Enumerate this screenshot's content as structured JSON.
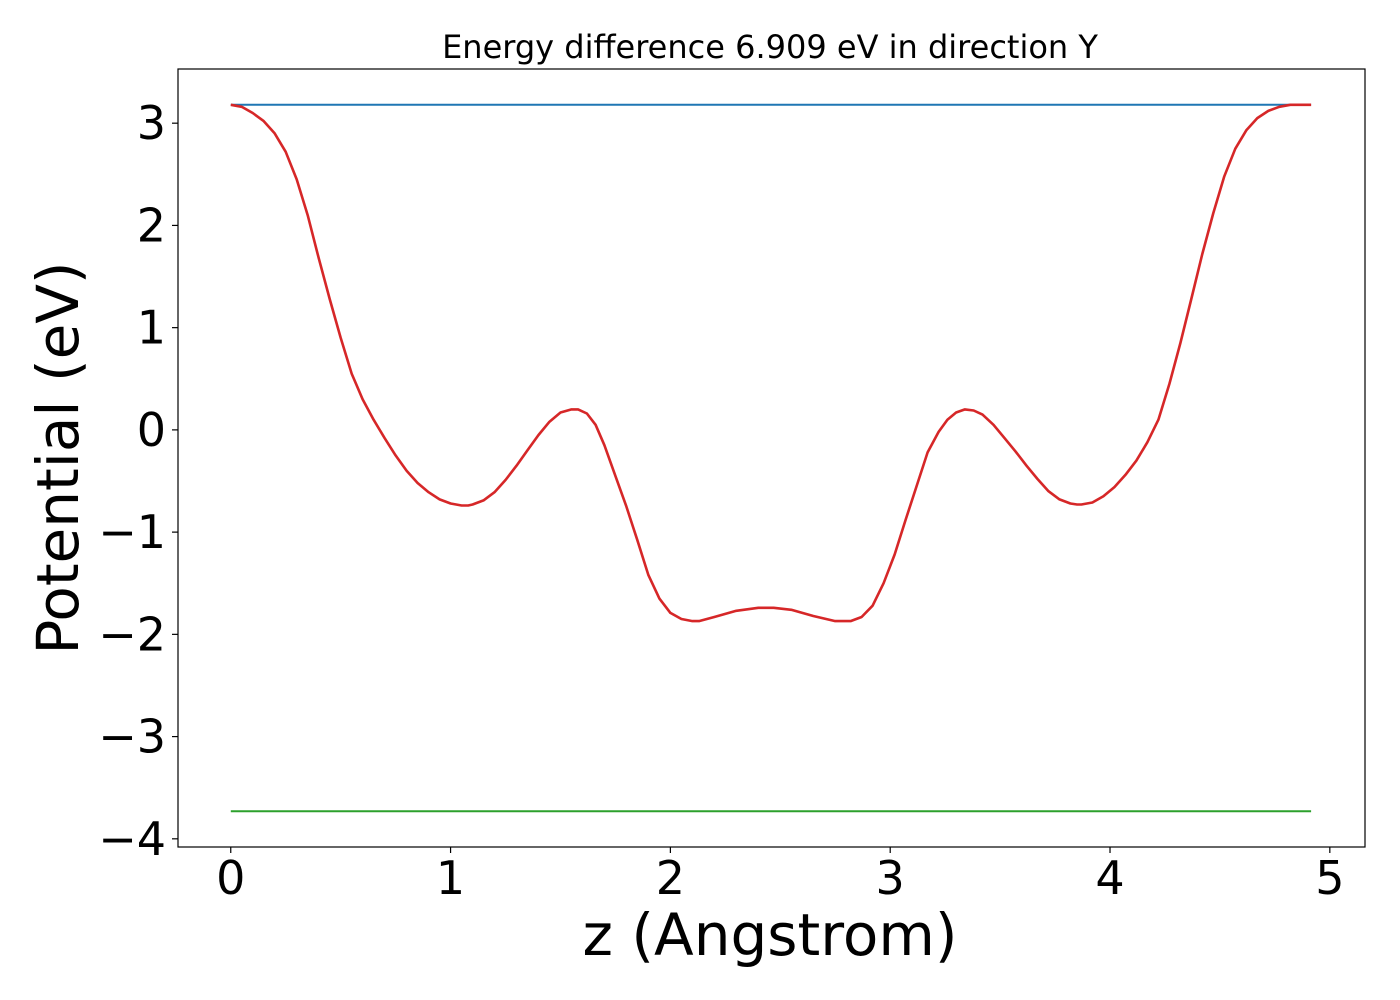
{
  "chart_data": {
    "type": "line",
    "title": "Energy difference 6.909 eV in direction Y",
    "xlabel": "z (Angstrom)",
    "ylabel": "Potential (eV)",
    "xlim": [
      -0.24,
      5.16
    ],
    "ylim": [
      -4.08,
      3.53
    ],
    "xticks": [
      0,
      1,
      2,
      3,
      4,
      5
    ],
    "xtick_labels": [
      "0",
      "1",
      "2",
      "3",
      "4",
      "5"
    ],
    "yticks": [
      3,
      2,
      1,
      0,
      -1,
      -2,
      -3,
      -4
    ],
    "ytick_labels": [
      "3",
      "2",
      "1",
      "0",
      "−1",
      "−2",
      "−3",
      "−4"
    ],
    "grid": false,
    "series": [
      {
        "color": "#1f77b4",
        "x": [
          0,
          4.915
        ],
        "y": [
          3.18,
          3.18
        ]
      },
      {
        "color": "#2ca02c",
        "x": [
          0,
          4.915
        ],
        "y": [
          -3.73,
          -3.73
        ]
      },
      {
        "color": "#d62728",
        "x": [
          0.0,
          0.05,
          0.1,
          0.15,
          0.2,
          0.25,
          0.3,
          0.35,
          0.4,
          0.45,
          0.5,
          0.55,
          0.6,
          0.65,
          0.7,
          0.75,
          0.8,
          0.85,
          0.9,
          0.95,
          1.0,
          1.05,
          1.08,
          1.1,
          1.15,
          1.2,
          1.25,
          1.3,
          1.35,
          1.4,
          1.45,
          1.5,
          1.55,
          1.58,
          1.62,
          1.66,
          1.7,
          1.75,
          1.8,
          1.85,
          1.9,
          1.95,
          2.0,
          2.05,
          2.1,
          2.13,
          2.2,
          2.3,
          2.4,
          2.47,
          2.55,
          2.65,
          2.75,
          2.82,
          2.87,
          2.92,
          2.97,
          3.02,
          3.07,
          3.12,
          3.17,
          3.22,
          3.26,
          3.3,
          3.34,
          3.38,
          3.42,
          3.47,
          3.52,
          3.57,
          3.62,
          3.67,
          3.72,
          3.77,
          3.82,
          3.85,
          3.87,
          3.92,
          3.97,
          4.02,
          4.07,
          4.12,
          4.17,
          4.22,
          4.27,
          4.32,
          4.37,
          4.42,
          4.47,
          4.52,
          4.57,
          4.62,
          4.67,
          4.72,
          4.77,
          4.82,
          4.87,
          4.915
        ],
        "y": [
          3.18,
          3.16,
          3.1,
          3.02,
          2.9,
          2.72,
          2.45,
          2.1,
          1.68,
          1.28,
          0.9,
          0.55,
          0.3,
          0.1,
          -0.08,
          -0.25,
          -0.4,
          -0.52,
          -0.61,
          -0.68,
          -0.72,
          -0.74,
          -0.74,
          -0.73,
          -0.69,
          -0.61,
          -0.49,
          -0.35,
          -0.2,
          -0.05,
          0.08,
          0.17,
          0.2,
          0.2,
          0.16,
          0.05,
          -0.15,
          -0.45,
          -0.75,
          -1.08,
          -1.42,
          -1.65,
          -1.79,
          -1.85,
          -1.87,
          -1.87,
          -1.83,
          -1.77,
          -1.74,
          -1.74,
          -1.76,
          -1.82,
          -1.87,
          -1.87,
          -1.83,
          -1.72,
          -1.5,
          -1.22,
          -0.88,
          -0.55,
          -0.22,
          -0.02,
          0.1,
          0.17,
          0.2,
          0.19,
          0.15,
          0.05,
          -0.08,
          -0.21,
          -0.35,
          -0.48,
          -0.6,
          -0.68,
          -0.72,
          -0.73,
          -0.73,
          -0.71,
          -0.65,
          -0.56,
          -0.44,
          -0.3,
          -0.12,
          0.1,
          0.45,
          0.85,
          1.28,
          1.72,
          2.12,
          2.48,
          2.75,
          2.93,
          3.05,
          3.12,
          3.16,
          3.18,
          3.18,
          3.18
        ]
      }
    ]
  }
}
